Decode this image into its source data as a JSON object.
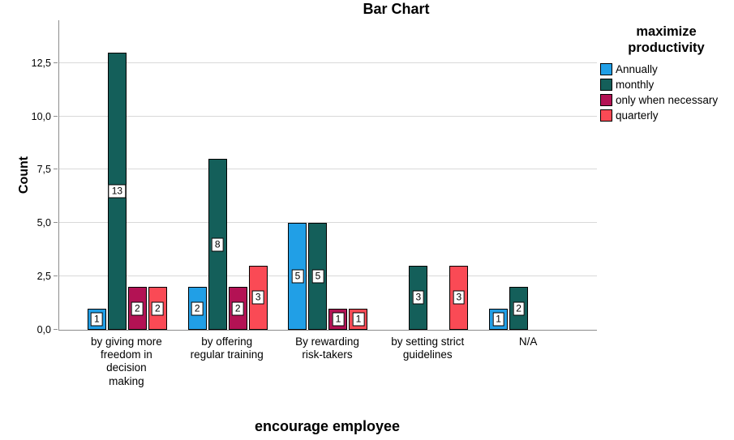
{
  "chart_data": {
    "type": "bar",
    "title": "Bar Chart",
    "xlabel": "encourage employee",
    "ylabel": "Count",
    "legend_title": "maximize productivity",
    "legend_position": "right",
    "grid": true,
    "bar_labels": true,
    "categories": [
      "by giving more freedom in decision making",
      "by offering regular training",
      "By rewarding risk-takers",
      "by setting strict guidelines",
      "N/A"
    ],
    "series": [
      {
        "name": "Annually",
        "color": "#219FE6",
        "values": [
          1,
          2,
          5,
          0,
          1
        ]
      },
      {
        "name": "monthly",
        "color": "#145F5A",
        "values": [
          13,
          8,
          5,
          3,
          2
        ]
      },
      {
        "name": "only when necessary",
        "color": "#B31254",
        "values": [
          2,
          2,
          1,
          0,
          0
        ]
      },
      {
        "name": "quarterly",
        "color": "#FA4A55",
        "values": [
          2,
          3,
          1,
          3,
          0
        ]
      }
    ],
    "ytick_labels": [
      "0,0",
      "2,5",
      "5,0",
      "7,5",
      "10,0",
      "12,5"
    ],
    "ytick_values": [
      0,
      2.5,
      5,
      7.5,
      10,
      12.5
    ],
    "ylim": [
      0,
      14.5
    ],
    "axis_color": "#8c8c8c",
    "gridline_color": "#d9d9d9"
  }
}
